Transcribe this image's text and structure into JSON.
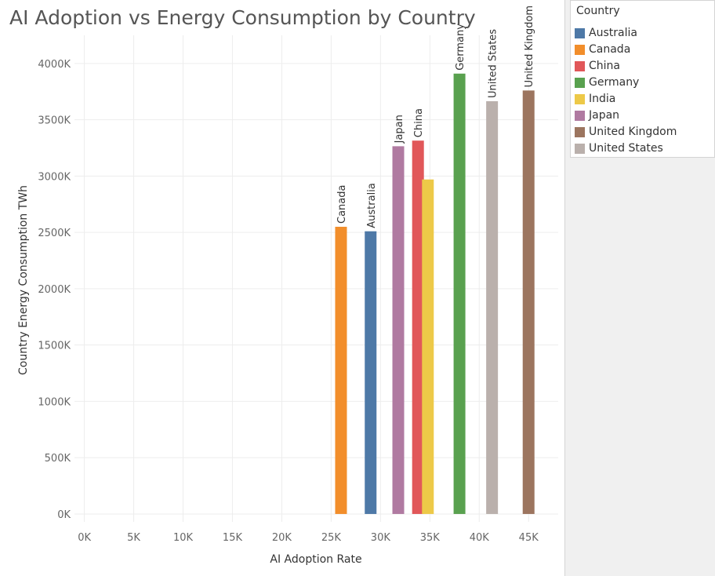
{
  "chart_data": {
    "type": "bar",
    "title": "AI Adoption vs Energy Consumption by Country",
    "xlabel": "AI Adoption Rate",
    "ylabel": "Country Energy Consumption TWh",
    "xlim": [
      -1000,
      48000
    ],
    "ylim": [
      -70,
      4250
    ],
    "x_ticks": [
      0,
      5000,
      10000,
      15000,
      20000,
      25000,
      30000,
      35000,
      40000,
      45000
    ],
    "x_tick_labels": [
      "0K",
      "5K",
      "10K",
      "15K",
      "20K",
      "25K",
      "30K",
      "35K",
      "40K",
      "45K"
    ],
    "y_ticks": [
      0,
      500,
      1000,
      1500,
      2000,
      2500,
      3000,
      3500,
      4000
    ],
    "y_tick_labels": [
      "0K",
      "500K",
      "1000K",
      "1500K",
      "2000K",
      "2500K",
      "3000K",
      "3500K",
      "4000K"
    ],
    "grid": true,
    "legend_position": "right",
    "series": [
      {
        "name": "Australia",
        "x": 29000,
        "value": 2510,
        "label": "Australia",
        "color": "#4e79a7"
      },
      {
        "name": "Canada",
        "x": 26000,
        "value": 2550,
        "label": "Canada",
        "color": "#f28e2b"
      },
      {
        "name": "China",
        "x": 33800,
        "value": 3315,
        "label": "China",
        "color": "#e15759"
      },
      {
        "name": "Germany",
        "x": 38000,
        "value": 3910,
        "label": "Germany",
        "color": "#59a14f"
      },
      {
        "name": "India",
        "x": 34800,
        "value": 2970,
        "label": "",
        "color": "#edc948"
      },
      {
        "name": "Japan",
        "x": 31800,
        "value": 3265,
        "label": "Japan",
        "color": "#b07aa1"
      },
      {
        "name": "United Kingdom",
        "x": 45000,
        "value": 3760,
        "label": "United Kingdom",
        "color": "#9c755f"
      },
      {
        "name": "United States",
        "x": 41300,
        "value": 3665,
        "label": "United States",
        "color": "#bab0ac"
      }
    ]
  },
  "legend": {
    "title": "Country",
    "items": [
      {
        "label": "Australia",
        "color": "#4e79a7"
      },
      {
        "label": "Canada",
        "color": "#f28e2b"
      },
      {
        "label": "China",
        "color": "#e15759"
      },
      {
        "label": "Germany",
        "color": "#59a14f"
      },
      {
        "label": "India",
        "color": "#edc948"
      },
      {
        "label": "Japan",
        "color": "#b07aa1"
      },
      {
        "label": "United Kingdom",
        "color": "#9c755f"
      },
      {
        "label": "United States",
        "color": "#bab0ac"
      }
    ]
  }
}
